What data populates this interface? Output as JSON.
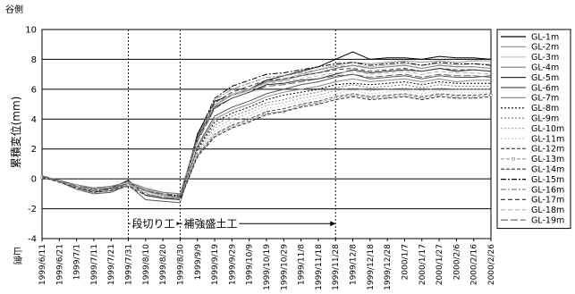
{
  "chart_data": {
    "type": "line",
    "ylabel_top": "谷側",
    "ylabel": "累積変位(mm)",
    "ylabel_bottom": "山側",
    "xlabel": "",
    "ylim": [
      -4,
      10
    ],
    "yticks": [
      -4,
      -2,
      0,
      2,
      4,
      6,
      8,
      10
    ],
    "grid": "horizontal",
    "legend_position": "right",
    "x": [
      "1999/6/11",
      "1999/6/21",
      "1999/7/1",
      "1999/7/11",
      "1999/7/21",
      "1999/7/31",
      "1999/8/10",
      "1999/8/20",
      "1999/8/30",
      "1999/9/9",
      "1999/9/19",
      "1999/9/29",
      "1999/10/9",
      "1999/10/19",
      "1999/10/29",
      "1999/11/8",
      "1999/11/18",
      "1999/11/28",
      "1999/12/8",
      "1999/12/18",
      "1999/12/28",
      "2000/1/7",
      "2000/1/17",
      "2000/1/27",
      "2000/2/6",
      "2000/2/16",
      "2000/2/26"
    ],
    "series": [
      {
        "name": "GL-1m",
        "values": [
          0.2,
          -0.2,
          -0.6,
          -0.9,
          -0.6,
          -0.1,
          -1.1,
          -1.3,
          -1.4,
          3.0,
          5.2,
          5.6,
          6.0,
          6.6,
          6.9,
          7.2,
          7.5,
          8.0,
          8.5,
          8.0,
          8.1,
          8.1,
          8.0,
          8.2,
          8.1,
          8.1,
          8.0
        ]
      },
      {
        "name": "GL-2m",
        "values": [
          0.2,
          -0.1,
          -0.5,
          -0.6,
          -0.5,
          -0.2,
          -0.6,
          -0.9,
          -1.0,
          2.8,
          5.0,
          5.6,
          5.9,
          6.5,
          6.7,
          7.0,
          7.3,
          7.6,
          7.8,
          7.7,
          7.8,
          7.9,
          7.8,
          7.9,
          7.8,
          7.9,
          7.9
        ]
      },
      {
        "name": "GL-3m",
        "values": [
          0.1,
          -0.1,
          -0.5,
          -0.7,
          -0.5,
          -0.2,
          -0.7,
          -0.9,
          -1.0,
          2.7,
          5.0,
          5.7,
          6.0,
          6.4,
          6.7,
          7.0,
          7.1,
          7.4,
          7.6,
          7.5,
          7.6,
          7.7,
          7.6,
          7.7,
          7.6,
          7.7,
          7.7
        ]
      },
      {
        "name": "GL-4m",
        "values": [
          0.1,
          -0.1,
          -0.4,
          -0.6,
          -0.5,
          -0.2,
          -0.7,
          -0.9,
          -1.0,
          2.7,
          4.9,
          5.6,
          6.0,
          6.5,
          6.6,
          6.9,
          7.1,
          7.4,
          7.6,
          7.4,
          7.5,
          7.6,
          7.4,
          7.6,
          7.5,
          7.5,
          7.4
        ]
      },
      {
        "name": "GL-5m",
        "values": [
          0.2,
          -0.2,
          -0.6,
          -0.8,
          -0.7,
          -0.3,
          -0.8,
          -1.1,
          -1.2,
          2.6,
          4.8,
          5.4,
          5.8,
          6.3,
          6.4,
          6.6,
          6.7,
          7.0,
          7.3,
          7.1,
          7.2,
          7.3,
          7.2,
          7.4,
          7.2,
          7.3,
          7.2
        ]
      },
      {
        "name": "GL-6m",
        "values": [
          0.2,
          -0.2,
          -0.7,
          -1.0,
          -0.9,
          -0.4,
          -1.4,
          -1.5,
          -1.6,
          2.2,
          4.2,
          4.8,
          5.2,
          5.7,
          6.0,
          6.3,
          6.5,
          6.8,
          7.0,
          6.7,
          6.8,
          6.9,
          6.7,
          6.9,
          6.8,
          6.8,
          6.9
        ]
      },
      {
        "name": "GL-7m",
        "values": [
          0.1,
          -0.2,
          -0.6,
          -0.9,
          -0.8,
          -0.4,
          -1.0,
          -1.2,
          -1.3,
          2.1,
          4.0,
          4.6,
          5.0,
          5.5,
          5.8,
          6.0,
          6.2,
          6.5,
          6.7,
          6.5,
          6.6,
          6.7,
          6.5,
          6.7,
          6.5,
          6.6,
          6.6
        ]
      },
      {
        "name": "GL-8m",
        "values": [
          0.1,
          -0.1,
          -0.5,
          -0.7,
          -0.6,
          -0.3,
          -0.8,
          -1.0,
          -1.1,
          2.0,
          3.8,
          4.4,
          4.8,
          5.3,
          5.6,
          5.8,
          6.0,
          6.3,
          6.4,
          6.3,
          6.4,
          6.5,
          6.3,
          6.5,
          6.4,
          6.4,
          6.4
        ]
      },
      {
        "name": "GL-9m",
        "values": [
          0.1,
          -0.1,
          -0.5,
          -0.7,
          -0.6,
          -0.3,
          -0.8,
          -1.0,
          -1.1,
          1.9,
          3.6,
          4.2,
          4.6,
          5.1,
          5.3,
          5.6,
          5.8,
          6.1,
          6.3,
          6.1,
          6.2,
          6.3,
          6.1,
          6.3,
          6.2,
          6.2,
          6.2
        ]
      },
      {
        "name": "GL-10m",
        "values": [
          0.1,
          -0.2,
          -0.5,
          -0.8,
          -0.7,
          -0.3,
          -0.9,
          -1.1,
          -1.2,
          1.8,
          3.4,
          4.0,
          4.4,
          4.9,
          5.1,
          5.4,
          5.6,
          5.9,
          6.1,
          5.9,
          6.0,
          6.1,
          5.9,
          6.1,
          6.0,
          6.0,
          6.0
        ]
      },
      {
        "name": "GL-11m",
        "values": [
          0.1,
          -0.2,
          -0.6,
          -0.8,
          -0.7,
          -0.4,
          -0.9,
          -1.1,
          -1.3,
          1.7,
          3.2,
          3.8,
          4.2,
          4.7,
          4.9,
          5.2,
          5.4,
          5.7,
          5.9,
          5.7,
          5.8,
          5.9,
          5.7,
          5.9,
          5.8,
          5.8,
          5.8
        ]
      },
      {
        "name": "GL-12m",
        "values": [
          0.1,
          -0.2,
          -0.6,
          -0.8,
          -0.7,
          -0.4,
          -1.0,
          -1.2,
          -1.3,
          1.6,
          3.0,
          3.6,
          4.0,
          4.5,
          4.7,
          5.0,
          5.2,
          5.5,
          5.7,
          5.5,
          5.6,
          5.7,
          5.5,
          5.7,
          5.6,
          5.6,
          5.7
        ]
      },
      {
        "name": "GL-13m",
        "values": [
          0.1,
          -0.2,
          -0.6,
          -0.9,
          -0.8,
          -0.4,
          -1.0,
          -1.2,
          -1.4,
          1.5,
          2.9,
          3.5,
          3.9,
          4.4,
          4.5,
          4.9,
          5.1,
          5.4,
          5.6,
          5.4,
          5.5,
          5.6,
          5.4,
          5.6,
          5.5,
          5.5,
          5.6
        ]
      },
      {
        "name": "GL-14m",
        "values": [
          0.1,
          -0.2,
          -0.6,
          -0.9,
          -0.8,
          -0.5,
          -1.1,
          -1.3,
          -1.4,
          1.5,
          2.8,
          3.4,
          3.8,
          4.3,
          4.5,
          4.8,
          5.0,
          5.3,
          5.5,
          5.3,
          5.4,
          5.5,
          5.3,
          5.5,
          5.4,
          5.4,
          5.5
        ]
      },
      {
        "name": "GL-15m",
        "values": [
          0.2,
          -0.1,
          -0.5,
          -0.7,
          -0.6,
          -0.3,
          -0.8,
          -1.0,
          -1.2,
          2.9,
          5.4,
          6.2,
          6.6,
          7.0,
          7.1,
          7.3,
          7.5,
          7.7,
          7.8,
          7.6,
          7.7,
          7.8,
          7.6,
          7.8,
          7.7,
          7.7,
          7.6
        ]
      },
      {
        "name": "GL-16m",
        "values": [
          0.2,
          -0.1,
          -0.5,
          -0.7,
          -0.6,
          -0.3,
          -0.8,
          -1.0,
          -1.1,
          2.8,
          5.3,
          6.0,
          6.4,
          6.8,
          6.9,
          7.1,
          7.3,
          7.5,
          7.6,
          7.4,
          7.5,
          7.6,
          7.4,
          7.6,
          7.5,
          7.5,
          7.4
        ]
      },
      {
        "name": "GL-17m",
        "values": [
          0.2,
          -0.1,
          -0.5,
          -0.7,
          -0.6,
          -0.3,
          -0.8,
          -1.0,
          -1.1,
          2.7,
          5.1,
          5.8,
          6.2,
          6.6,
          6.7,
          6.9,
          7.1,
          7.3,
          7.4,
          7.2,
          7.3,
          7.4,
          7.2,
          7.4,
          7.3,
          7.3,
          7.2
        ]
      },
      {
        "name": "GL-18m",
        "values": [
          0.2,
          -0.1,
          -0.5,
          -0.7,
          -0.6,
          -0.3,
          -0.8,
          -1.0,
          -1.1,
          2.6,
          4.9,
          5.6,
          6.0,
          6.4,
          6.5,
          6.7,
          6.9,
          7.1,
          7.2,
          7.0,
          7.1,
          7.2,
          7.0,
          7.2,
          7.1,
          7.1,
          7.0
        ]
      },
      {
        "name": "GL-19m",
        "values": [
          0.2,
          -0.1,
          -0.5,
          -0.7,
          -0.6,
          -0.3,
          -0.8,
          -1.0,
          -1.1,
          2.5,
          4.7,
          5.4,
          5.8,
          6.2,
          6.3,
          6.5,
          6.7,
          6.9,
          7.0,
          6.8,
          6.9,
          7.0,
          6.8,
          7.0,
          6.9,
          6.9,
          6.8
        ]
      }
    ],
    "series_styles": [
      {
        "color": "#000000",
        "dash": ""
      },
      {
        "color": "#9a9a9a",
        "dash": ""
      },
      {
        "color": "#c4c4c4",
        "dash": ""
      },
      {
        "color": "#7a7a7a",
        "dash": ""
      },
      {
        "color": "#2e2e2e",
        "dash": ""
      },
      {
        "color": "#555555",
        "dash": ""
      },
      {
        "color": "#8a8a8a",
        "dash": ""
      },
      {
        "color": "#000000",
        "dash": "2,2"
      },
      {
        "color": "#777777",
        "dash": "2,2"
      },
      {
        "color": "#aaaaaa",
        "dash": "2,2"
      },
      {
        "color": "#cccccc",
        "dash": "2,2"
      },
      {
        "color": "#555555",
        "dash": "4,2"
      },
      {
        "color": "#999999",
        "dash": "4,2",
        "marker": "circle"
      },
      {
        "color": "#333333",
        "dash": "4,2"
      },
      {
        "color": "#000000",
        "dash": "6,2,2,2"
      },
      {
        "color": "#888888",
        "dash": "6,2,2,2"
      },
      {
        "color": "#444444",
        "dash": "5,3"
      },
      {
        "color": "#b0b0b0",
        "dash": "5,3"
      },
      {
        "color": "#666666",
        "dash": "8,3"
      }
    ],
    "vertical_markers": [
      "1999/7/31",
      "1999/8/30",
      "1999/11/28"
    ],
    "annotations": [
      {
        "text": "段切り工",
        "from": "1999/7/31",
        "to": "1999/8/30",
        "y": -3.0
      },
      {
        "text": "補強盛土工",
        "from": "1999/8/30",
        "to": "1999/11/28",
        "y": -3.0
      }
    ]
  }
}
